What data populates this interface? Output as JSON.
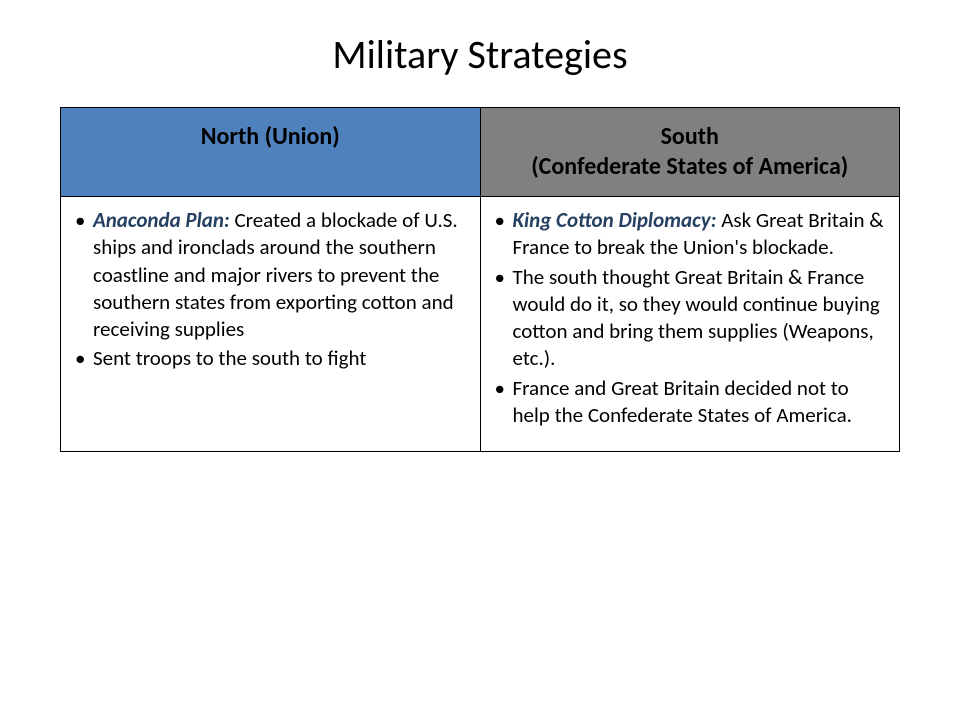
{
  "title": "Military Strategies",
  "columns": {
    "north": {
      "header": "North (Union)",
      "bg_color": "#4f81bd"
    },
    "south": {
      "header": "South\n(Confederate States of America)",
      "bg_color": "#808080"
    }
  },
  "north_bullets": [
    {
      "lead": "Anaconda Plan:",
      "text": " Created a blockade of U.S. ships and ironclads around the southern coastline and major rivers to prevent the southern states from exporting cotton and receiving supplies"
    },
    {
      "lead": "",
      "text": "Sent troops to the south to fight"
    }
  ],
  "south_bullets": [
    {
      "lead": "King Cotton Diplomacy:",
      "text": " Ask Great Britain & France to break the Union's blockade."
    },
    {
      "lead": "",
      "text": "The south thought Great Britain & France would do it, so they would continue buying cotton and bring them supplies (Weapons, etc.)."
    },
    {
      "lead": "",
      "text": "France and Great Britain decided not to help the Confederate States of America."
    }
  ],
  "lead_color": "#254061",
  "body_fontsize": 21,
  "header_fontsize": 24,
  "title_fontsize": 40
}
